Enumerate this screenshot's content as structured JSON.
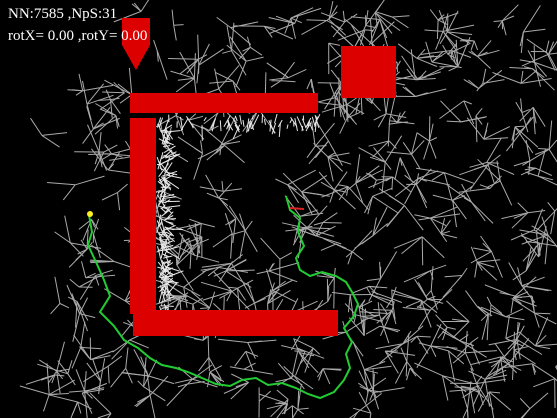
{
  "hud": {
    "stats": "NN:7585 ,NpS:31",
    "rotation": "rotX= 0.00 ,rotY= 0.00"
  },
  "colors": {
    "background": "#000000",
    "network": "#c8c8c8",
    "walls": "#dd0000",
    "path": "#22cc33",
    "marker": "#ffee22",
    "hud_text": "#ffffff"
  },
  "icons": {
    "spawn_arrow": "arrow-down-icon",
    "target": "square-target-icon",
    "start_point": "dot-marker-icon"
  }
}
